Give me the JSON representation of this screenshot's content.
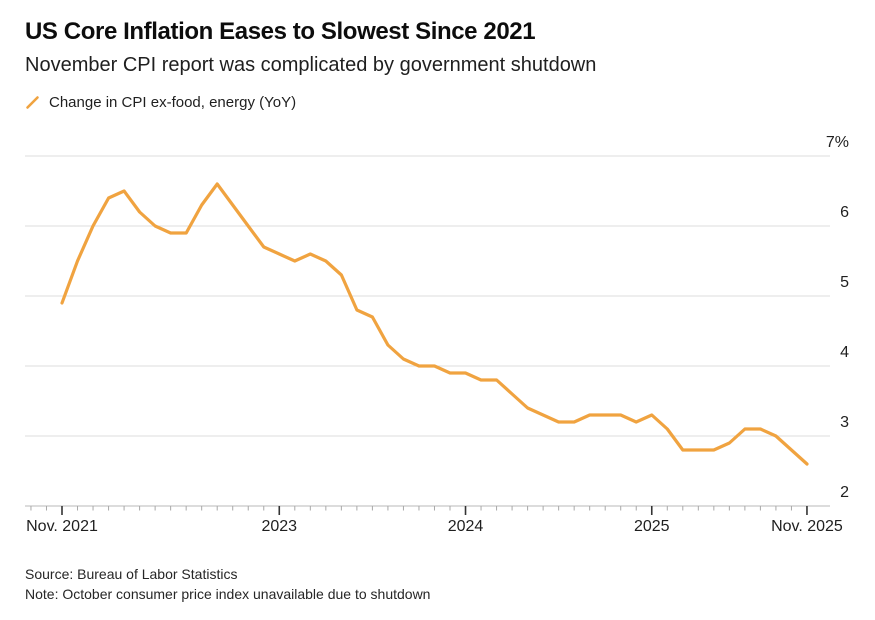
{
  "header": {
    "title": "US Core Inflation Eases to Slowest Since 2021",
    "subtitle": "November CPI report was complicated by government shutdown"
  },
  "legend": {
    "label": "Change in CPI ex-food, energy (YoY)",
    "marker_color": "#F0A340"
  },
  "footer": {
    "source": "Source: Bureau of Labor Statistics",
    "note": "Note: October consumer price index unavailable due to shutdown"
  },
  "chart_data": {
    "type": "line",
    "title": "US Core Inflation Eases to Slowest Since 2021",
    "subtitle": "November CPI report was complicated by government shutdown",
    "unit": "percent YoY",
    "ylim": [
      2,
      7
    ],
    "grid": "horizontal",
    "legend_position": "top-left",
    "x_range": [
      "Nov. 2021",
      "Nov. 2025"
    ],
    "y_ticks": [
      {
        "value": 7,
        "label": "7%"
      },
      {
        "value": 6,
        "label": "6"
      },
      {
        "value": 5,
        "label": "5"
      },
      {
        "value": 4,
        "label": "4"
      },
      {
        "value": 3,
        "label": "3"
      },
      {
        "value": 2,
        "label": "2"
      }
    ],
    "x_ticks": [
      {
        "month_index": 0,
        "label": "Nov. 2021"
      },
      {
        "month_index": 14,
        "label": "2023"
      },
      {
        "month_index": 26,
        "label": "2024"
      },
      {
        "month_index": 38,
        "label": "2025"
      },
      {
        "month_index": 48,
        "label": "Nov. 2025"
      }
    ],
    "series": [
      {
        "name": "Change in CPI ex-food, energy (YoY)",
        "color": "#F0A340",
        "missing": [
          "Oct 2025"
        ],
        "points": [
          {
            "month": "Nov 2021",
            "month_index": 0,
            "value": 4.9
          },
          {
            "month": "Dec 2021",
            "month_index": 1,
            "value": 5.5
          },
          {
            "month": "Jan 2022",
            "month_index": 2,
            "value": 6.0
          },
          {
            "month": "Feb 2022",
            "month_index": 3,
            "value": 6.4
          },
          {
            "month": "Mar 2022",
            "month_index": 4,
            "value": 6.5
          },
          {
            "month": "Apr 2022",
            "month_index": 5,
            "value": 6.2
          },
          {
            "month": "May 2022",
            "month_index": 6,
            "value": 6.0
          },
          {
            "month": "Jun 2022",
            "month_index": 7,
            "value": 5.9
          },
          {
            "month": "Jul 2022",
            "month_index": 8,
            "value": 5.9
          },
          {
            "month": "Aug 2022",
            "month_index": 9,
            "value": 6.3
          },
          {
            "month": "Sep 2022",
            "month_index": 10,
            "value": 6.6
          },
          {
            "month": "Oct 2022",
            "month_index": 11,
            "value": 6.3
          },
          {
            "month": "Nov 2022",
            "month_index": 12,
            "value": 6.0
          },
          {
            "month": "Dec 2022",
            "month_index": 13,
            "value": 5.7
          },
          {
            "month": "Jan 2023",
            "month_index": 14,
            "value": 5.6
          },
          {
            "month": "Feb 2023",
            "month_index": 15,
            "value": 5.5
          },
          {
            "month": "Mar 2023",
            "month_index": 16,
            "value": 5.6
          },
          {
            "month": "Apr 2023",
            "month_index": 17,
            "value": 5.5
          },
          {
            "month": "May 2023",
            "month_index": 18,
            "value": 5.3
          },
          {
            "month": "Jun 2023",
            "month_index": 19,
            "value": 4.8
          },
          {
            "month": "Jul 2023",
            "month_index": 20,
            "value": 4.7
          },
          {
            "month": "Aug 2023",
            "month_index": 21,
            "value": 4.3
          },
          {
            "month": "Sep 2023",
            "month_index": 22,
            "value": 4.1
          },
          {
            "month": "Oct 2023",
            "month_index": 23,
            "value": 4.0
          },
          {
            "month": "Nov 2023",
            "month_index": 24,
            "value": 4.0
          },
          {
            "month": "Dec 2023",
            "month_index": 25,
            "value": 3.9
          },
          {
            "month": "Jan 2024",
            "month_index": 26,
            "value": 3.9
          },
          {
            "month": "Feb 2024",
            "month_index": 27,
            "value": 3.8
          },
          {
            "month": "Mar 2024",
            "month_index": 28,
            "value": 3.8
          },
          {
            "month": "Apr 2024",
            "month_index": 29,
            "value": 3.6
          },
          {
            "month": "May 2024",
            "month_index": 30,
            "value": 3.4
          },
          {
            "month": "Jun 2024",
            "month_index": 31,
            "value": 3.3
          },
          {
            "month": "Jul 2024",
            "month_index": 32,
            "value": 3.2
          },
          {
            "month": "Aug 2024",
            "month_index": 33,
            "value": 3.2
          },
          {
            "month": "Sep 2024",
            "month_index": 34,
            "value": 3.3
          },
          {
            "month": "Oct 2024",
            "month_index": 35,
            "value": 3.3
          },
          {
            "month": "Nov 2024",
            "month_index": 36,
            "value": 3.3
          },
          {
            "month": "Dec 2024",
            "month_index": 37,
            "value": 3.2
          },
          {
            "month": "Jan 2025",
            "month_index": 38,
            "value": 3.3
          },
          {
            "month": "Feb 2025",
            "month_index": 39,
            "value": 3.1
          },
          {
            "month": "Mar 2025",
            "month_index": 40,
            "value": 2.8
          },
          {
            "month": "Apr 2025",
            "month_index": 41,
            "value": 2.8
          },
          {
            "month": "May 2025",
            "month_index": 42,
            "value": 2.8
          },
          {
            "month": "Jun 2025",
            "month_index": 43,
            "value": 2.9
          },
          {
            "month": "Jul 2025",
            "month_index": 44,
            "value": 3.1
          },
          {
            "month": "Aug 2025",
            "month_index": 45,
            "value": 3.1
          },
          {
            "month": "Sep 2025",
            "month_index": 46,
            "value": 3.0
          },
          {
            "month": "Nov 2025",
            "month_index": 48,
            "value": 2.6
          }
        ]
      }
    ]
  }
}
